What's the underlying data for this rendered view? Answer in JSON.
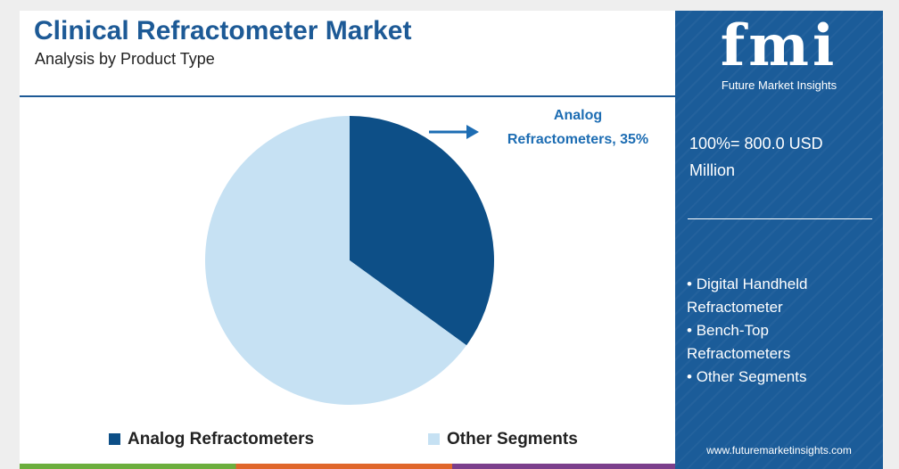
{
  "chart_data": {
    "type": "pie",
    "title": "Clinical Refractometer Market",
    "subtitle": "Analysis by Product Type",
    "categories": [
      "Analog Refractometers",
      "Other Segments"
    ],
    "values": [
      35,
      65
    ],
    "value_labels": [
      "Analog Refractometers, 35%",
      null
    ],
    "colors": [
      "#0d4f87",
      "#c6e1f3"
    ]
  },
  "sidebar": {
    "logo": "fmi",
    "brand": "Future Market Insights",
    "total": "100%= 800.0 USD Million",
    "segments": [
      "Digital Handheld Refractometer",
      "Bench-Top Refractometers",
      "Other Segments"
    ],
    "website": "www.futuremarketinsights.com"
  }
}
